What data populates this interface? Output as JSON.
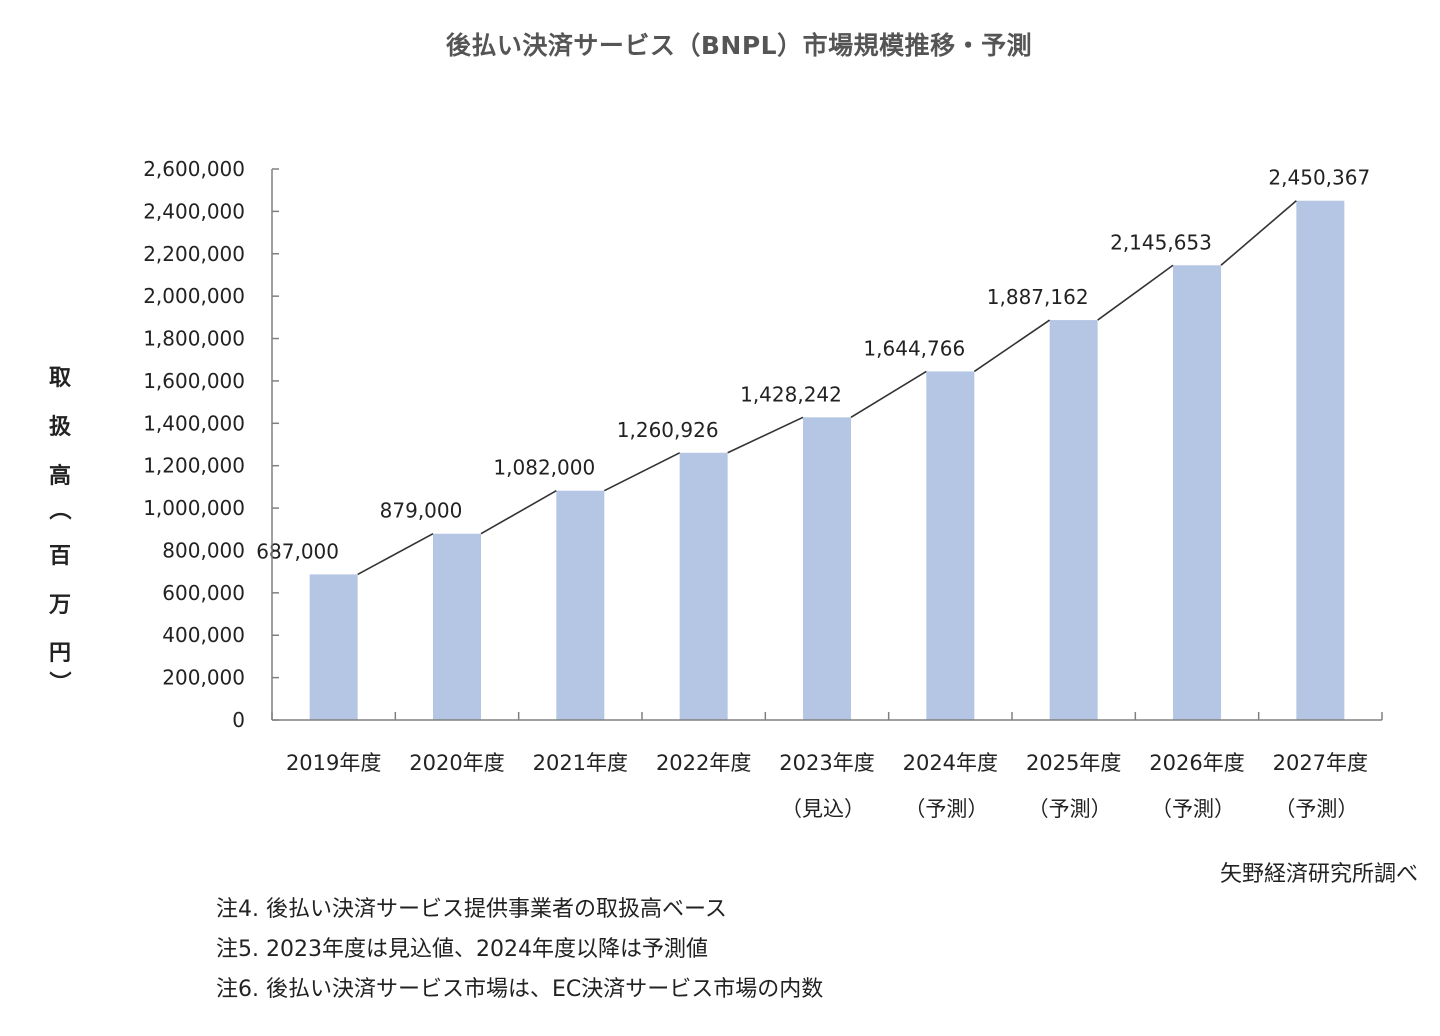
{
  "chart_data": {
    "type": "bar",
    "title": "後払い決済サービス（BNPL）市場規模推移・予測",
    "xlabel": "",
    "ylabel": "取扱高（百万円）",
    "ylim": [
      0,
      2600000
    ],
    "yticks": [
      0,
      200000,
      400000,
      600000,
      800000,
      1000000,
      1200000,
      1400000,
      1600000,
      1800000,
      2000000,
      2200000,
      2400000,
      2600000
    ],
    "ytick_labels": [
      "0",
      "200,000",
      "400,000",
      "600,000",
      "800,000",
      "1,000,000",
      "1,200,000",
      "1,400,000",
      "1,600,000",
      "1,800,000",
      "2,000,000",
      "2,200,000",
      "2,400,000",
      "2,600,000"
    ],
    "grid": false,
    "bar_color": "#b4c6e4",
    "connector_lines": true,
    "categories": [
      "2019年度",
      "2020年度",
      "2021年度",
      "2022年度",
      "2023年度",
      "2024年度",
      "2025年度",
      "2026年度",
      "2027年度"
    ],
    "category_sublabels": [
      "",
      "",
      "",
      "",
      "（見込）",
      "（予測）",
      "（予測）",
      "（予測）",
      "（予測）"
    ],
    "values": [
      687000,
      879000,
      1082000,
      1260926,
      1428242,
      1644766,
      1887162,
      2145653,
      2450367
    ],
    "data_labels": [
      "687,000",
      "879,000",
      "1,082,000",
      "1,260,926",
      "1,428,242",
      "1,644,766",
      "1,887,162",
      "2,145,653",
      "2,450,367"
    ]
  },
  "source": "矢野経済研究所調べ",
  "notes": [
    "注4. 後払い決済サービス提供事業者の取扱高ベース",
    "注5. 2023年度は見込値、2024年度以降は予測値",
    "注6. 後払い決済サービス市場は、EC決済サービス市場の内数"
  ]
}
